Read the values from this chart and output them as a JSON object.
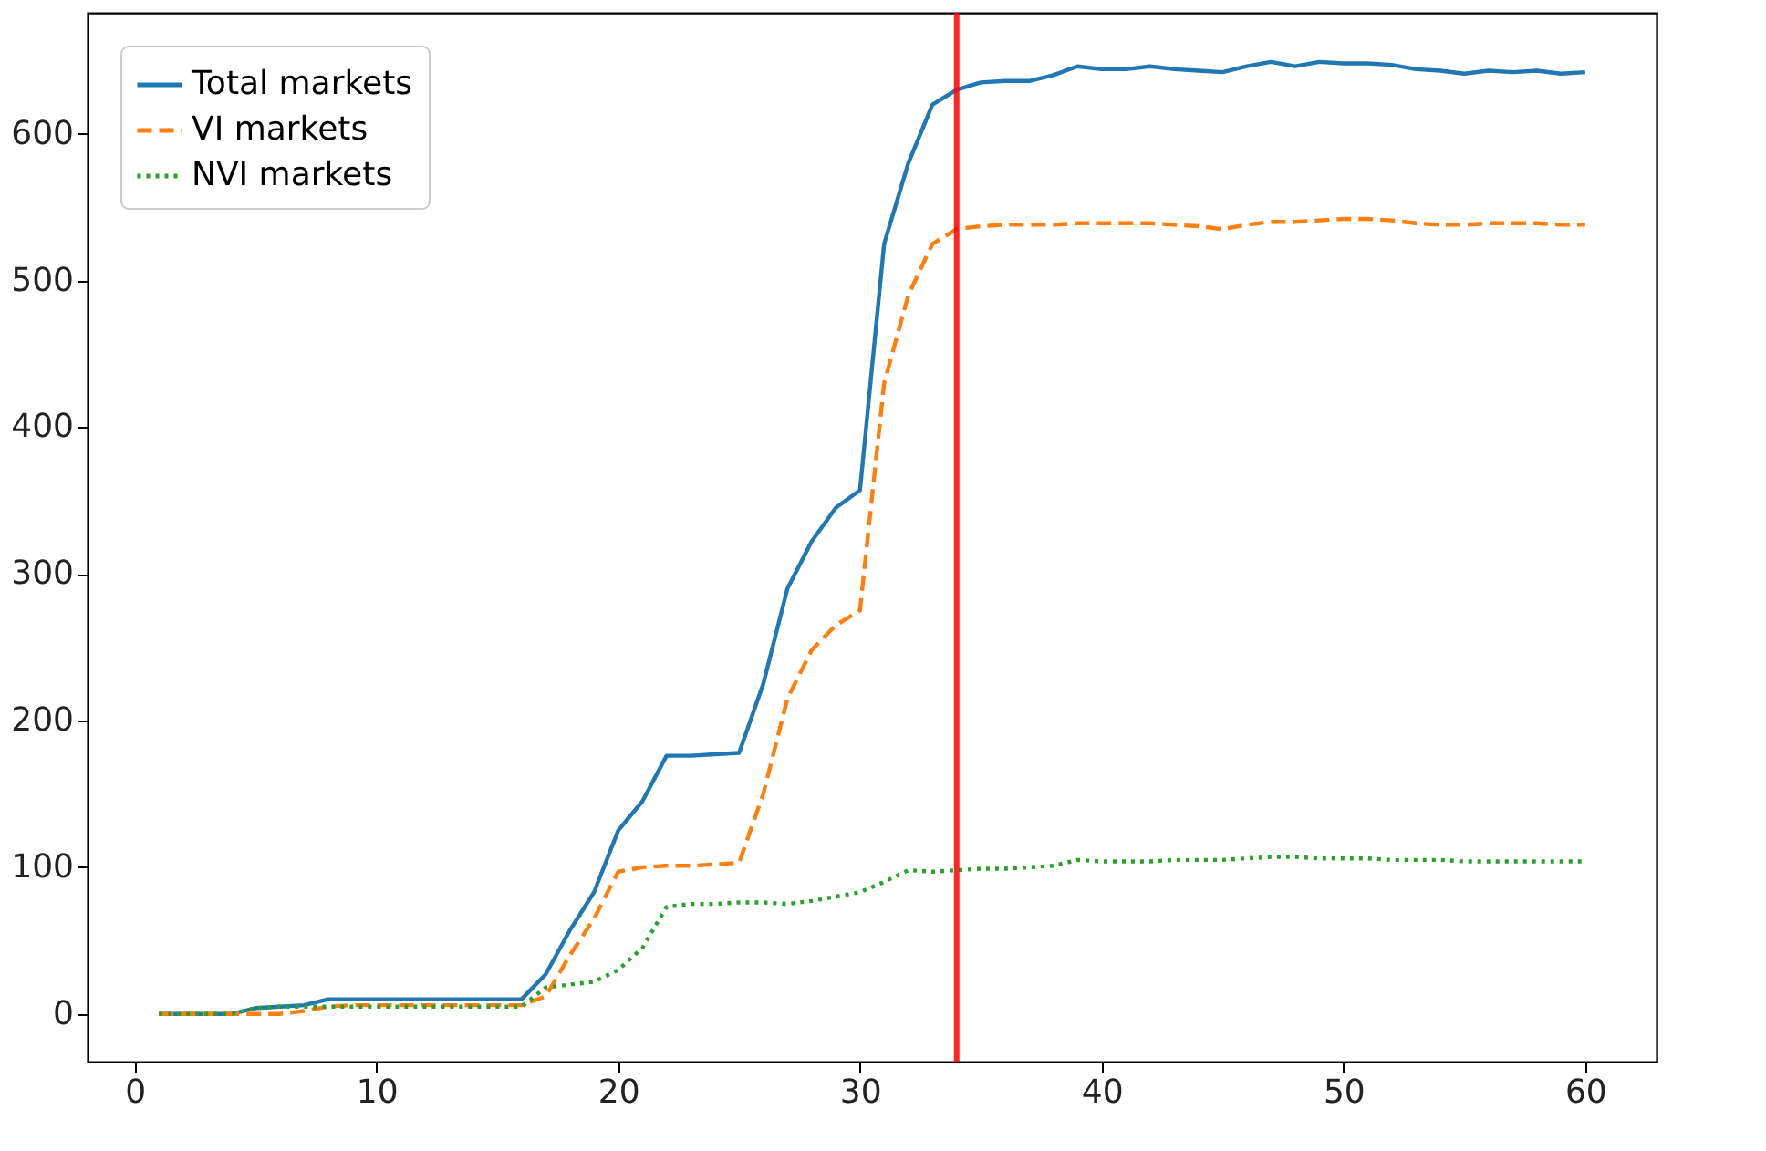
{
  "chart_data": {
    "type": "line",
    "x": [
      1,
      2,
      3,
      4,
      5,
      6,
      7,
      8,
      9,
      10,
      11,
      12,
      13,
      14,
      15,
      16,
      17,
      18,
      19,
      20,
      21,
      22,
      23,
      24,
      25,
      26,
      27,
      28,
      29,
      30,
      31,
      32,
      33,
      34,
      35,
      36,
      37,
      38,
      39,
      40,
      41,
      42,
      43,
      44,
      45,
      46,
      47,
      48,
      49,
      50,
      51,
      52,
      53,
      54,
      55,
      56,
      57,
      58,
      59,
      60
    ],
    "series": [
      {
        "name": "Total markets",
        "color": "#1f77b4",
        "line_style": "solid",
        "values": [
          0,
          0,
          0,
          0,
          4,
          5,
          6,
          10,
          10,
          10,
          10,
          10,
          10,
          10,
          10,
          10,
          27,
          57,
          83,
          125,
          145,
          176,
          176,
          177,
          178,
          225,
          290,
          322,
          345,
          357,
          525,
          580,
          620,
          630,
          635,
          636,
          636,
          640,
          646,
          644,
          644,
          646,
          644,
          643,
          642,
          646,
          649,
          646,
          649,
          648,
          648,
          647,
          644,
          643,
          641,
          643,
          642,
          643,
          641,
          642
        ]
      },
      {
        "name": "VI markets",
        "color": "#ff7f0e",
        "line_style": "dashed",
        "values": [
          0,
          0,
          0,
          0,
          0,
          0,
          2,
          5,
          6,
          6,
          6,
          6,
          6,
          6,
          6,
          6,
          12,
          40,
          65,
          97,
          100,
          101,
          101,
          102,
          103,
          150,
          215,
          248,
          265,
          275,
          430,
          490,
          525,
          535,
          537,
          538,
          538,
          538,
          539,
          539,
          539,
          539,
          538,
          537,
          535,
          538,
          540,
          540,
          541,
          542,
          542,
          541,
          539,
          538,
          538,
          539,
          539,
          539,
          538,
          538
        ]
      },
      {
        "name": "NVI markets",
        "color": "#2ca02c",
        "line_style": "dotted",
        "values": [
          0,
          0,
          0,
          0,
          4,
          5,
          5,
          5,
          5,
          5,
          5,
          5,
          5,
          5,
          5,
          5,
          18,
          20,
          22,
          30,
          45,
          73,
          75,
          75,
          76,
          76,
          75,
          77,
          80,
          83,
          90,
          98,
          97,
          98,
          99,
          99,
          100,
          101,
          105,
          104,
          104,
          104,
          105,
          105,
          105,
          106,
          107,
          107,
          106,
          106,
          106,
          105,
          105,
          105,
          104,
          104,
          104,
          104,
          104,
          104
        ]
      }
    ],
    "xlim": [
      -1.95,
      62.95
    ],
    "xticks": [
      0,
      10,
      20,
      30,
      40,
      50,
      60
    ],
    "ylim": [
      -32.5,
      682.5
    ],
    "yticks": [
      0,
      100,
      200,
      300,
      400,
      500,
      600
    ],
    "ref_lines": [
      {
        "axis": "x",
        "value": 34,
        "color": "#ff0000"
      }
    ],
    "legend": "top left",
    "grid": false
  }
}
